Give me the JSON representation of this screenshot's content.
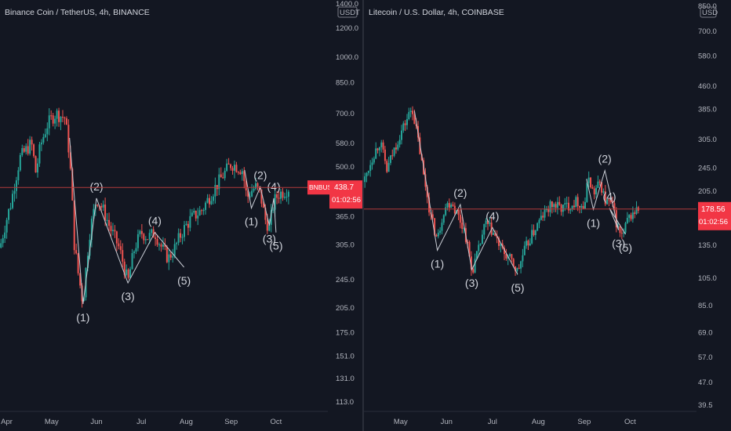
{
  "chart_data": [
    {
      "type": "candlestick",
      "title": "Binance Coin / TetherUS, 4h, BINANCE",
      "currency_badge": "USDT",
      "scale": "log",
      "ylim": [
        113.0,
        1400.0
      ],
      "xlim_month_index": [
        -0.15,
        6.7
      ],
      "y_ticks": [
        1400.0,
        1200.0,
        1000.0,
        850.0,
        700.0,
        580.0,
        500.0,
        365.0,
        305.0,
        245.0,
        205.0,
        175.0,
        151.0,
        131.0,
        113.0
      ],
      "x_ticks": [
        {
          "label": "Apr",
          "pos": 0.0
        },
        {
          "label": "May",
          "pos": 1.0
        },
        {
          "label": "Jun",
          "pos": 2.0
        },
        {
          "label": "Jul",
          "pos": 3.0
        },
        {
          "label": "Aug",
          "pos": 4.0
        },
        {
          "label": "Sep",
          "pos": 5.0
        },
        {
          "label": "Oct",
          "pos": 6.0
        }
      ],
      "price_path": [
        [
          -0.15,
          300
        ],
        [
          0.1,
          400
        ],
        [
          0.3,
          530
        ],
        [
          0.55,
          580
        ],
        [
          0.65,
          480
        ],
        [
          0.75,
          570
        ],
        [
          0.9,
          650
        ],
        [
          1.0,
          680
        ],
        [
          1.1,
          700
        ],
        [
          1.2,
          690
        ],
        [
          1.3,
          680
        ],
        [
          1.4,
          530
        ],
        [
          1.5,
          310
        ],
        [
          1.6,
          250
        ],
        [
          1.7,
          210
        ],
        [
          1.85,
          330
        ],
        [
          2.0,
          410
        ],
        [
          2.15,
          380
        ],
        [
          2.3,
          340
        ],
        [
          2.5,
          300
        ],
        [
          2.7,
          240
        ],
        [
          2.85,
          300
        ],
        [
          3.0,
          330
        ],
        [
          3.15,
          320
        ],
        [
          3.3,
          330
        ],
        [
          3.45,
          300
        ],
        [
          3.6,
          280
        ],
        [
          3.75,
          300
        ],
        [
          3.9,
          330
        ],
        [
          4.1,
          360
        ],
        [
          4.35,
          380
        ],
        [
          4.6,
          430
        ],
        [
          4.85,
          480
        ],
        [
          5.0,
          510
        ],
        [
          5.15,
          500
        ],
        [
          5.25,
          490
        ],
        [
          5.35,
          410
        ],
        [
          5.45,
          430
        ],
        [
          5.55,
          440
        ],
        [
          5.65,
          420
        ],
        [
          5.75,
          360
        ],
        [
          5.85,
          340
        ],
        [
          5.95,
          400
        ],
        [
          6.05,
          420
        ],
        [
          6.2,
          430
        ],
        [
          6.3,
          438.7
        ]
      ],
      "wave_points": [
        {
          "label": "(1)",
          "x": 1.7,
          "y": 210
        },
        {
          "label": "(2)",
          "x": 2.0,
          "y": 410
        },
        {
          "label": "(3)",
          "x": 2.7,
          "y": 240
        },
        {
          "label": "(4)",
          "x": 3.3,
          "y": 330
        },
        {
          "label": "(5)",
          "x": 3.95,
          "y": 265
        },
        {
          "label": "(1)",
          "x": 5.45,
          "y": 385
        },
        {
          "label": "(2)",
          "x": 5.65,
          "y": 440
        },
        {
          "label": "(3)",
          "x": 5.85,
          "y": 345
        },
        {
          "label": "(4)",
          "x": 5.95,
          "y": 410
        },
        {
          "label": "(5)",
          "x": 6.0,
          "y": 330
        }
      ],
      "last_price": {
        "symbol": "BNBUSDT",
        "value": "438.7",
        "countdown": "01:02:56",
        "y": 438.7
      }
    },
    {
      "type": "candlestick",
      "title": "Litecoin / U.S. Dollar, 4h, COINBASE",
      "currency_badge": "USD",
      "scale": "log",
      "ylim": [
        39.5,
        850.0
      ],
      "xlim_month_index": [
        -0.8,
        5.9
      ],
      "y_ticks": [
        850.0,
        700.0,
        580.0,
        460.0,
        385.0,
        305.0,
        245.0,
        205.0,
        135.0,
        105.0,
        85.0,
        69.0,
        57.0,
        47.0,
        39.5
      ],
      "x_ticks": [
        {
          "label": "May",
          "pos": 0.0
        },
        {
          "label": "Jun",
          "pos": 1.0
        },
        {
          "label": "Jul",
          "pos": 2.0
        },
        {
          "label": "Aug",
          "pos": 3.0
        },
        {
          "label": "Sep",
          "pos": 4.0
        },
        {
          "label": "Oct",
          "pos": 5.0
        }
      ],
      "price_path": [
        [
          -0.8,
          220
        ],
        [
          -0.6,
          270
        ],
        [
          -0.45,
          300
        ],
        [
          -0.3,
          240
        ],
        [
          -0.15,
          280
        ],
        [
          0.0,
          320
        ],
        [
          0.15,
          360
        ],
        [
          0.25,
          390
        ],
        [
          0.35,
          320
        ],
        [
          0.5,
          230
        ],
        [
          0.65,
          170
        ],
        [
          0.8,
          140
        ],
        [
          0.95,
          180
        ],
        [
          1.1,
          190
        ],
        [
          1.25,
          170
        ],
        [
          1.4,
          150
        ],
        [
          1.55,
          110
        ],
        [
          1.7,
          130
        ],
        [
          1.85,
          160
        ],
        [
          2.0,
          150
        ],
        [
          2.2,
          130
        ],
        [
          2.4,
          120
        ],
        [
          2.55,
          110
        ],
        [
          2.7,
          130
        ],
        [
          2.9,
          150
        ],
        [
          3.1,
          170
        ],
        [
          3.3,
          185
        ],
        [
          3.5,
          180
        ],
        [
          3.7,
          185
        ],
        [
          3.85,
          190
        ],
        [
          4.0,
          180
        ],
        [
          4.1,
          230
        ],
        [
          4.2,
          200
        ],
        [
          4.35,
          220
        ],
        [
          4.45,
          190
        ],
        [
          4.6,
          185
        ],
        [
          4.75,
          150
        ],
        [
          4.85,
          145
        ],
        [
          4.95,
          165
        ],
        [
          5.1,
          175
        ],
        [
          5.2,
          178.56
        ]
      ],
      "wave_points": [
        {
          "label": "(1)",
          "x": 0.8,
          "y": 130
        },
        {
          "label": "(2)",
          "x": 1.3,
          "y": 185
        },
        {
          "label": "(3)",
          "x": 1.55,
          "y": 112
        },
        {
          "label": "(4)",
          "x": 2.0,
          "y": 155
        },
        {
          "label": "(5)",
          "x": 2.55,
          "y": 108
        },
        {
          "label": "(1)",
          "x": 4.2,
          "y": 178
        },
        {
          "label": "(2)",
          "x": 4.45,
          "y": 240
        },
        {
          "label": "(3)",
          "x": 4.75,
          "y": 152
        },
        {
          "label": "(4)",
          "x": 4.55,
          "y": 180
        },
        {
          "label": "(5)",
          "x": 4.9,
          "y": 147
        }
      ],
      "last_price": {
        "symbol": "",
        "value": "178.56",
        "countdown": "01:02:56",
        "y": 178.56
      }
    }
  ],
  "colors": {
    "background": "#131722",
    "up": "#26a69a",
    "down": "#ef5350",
    "wave_line": "#c8ccd4",
    "price_line": "#b23a3a",
    "label_bg": "#f23645",
    "divider": "#2a2e39"
  }
}
